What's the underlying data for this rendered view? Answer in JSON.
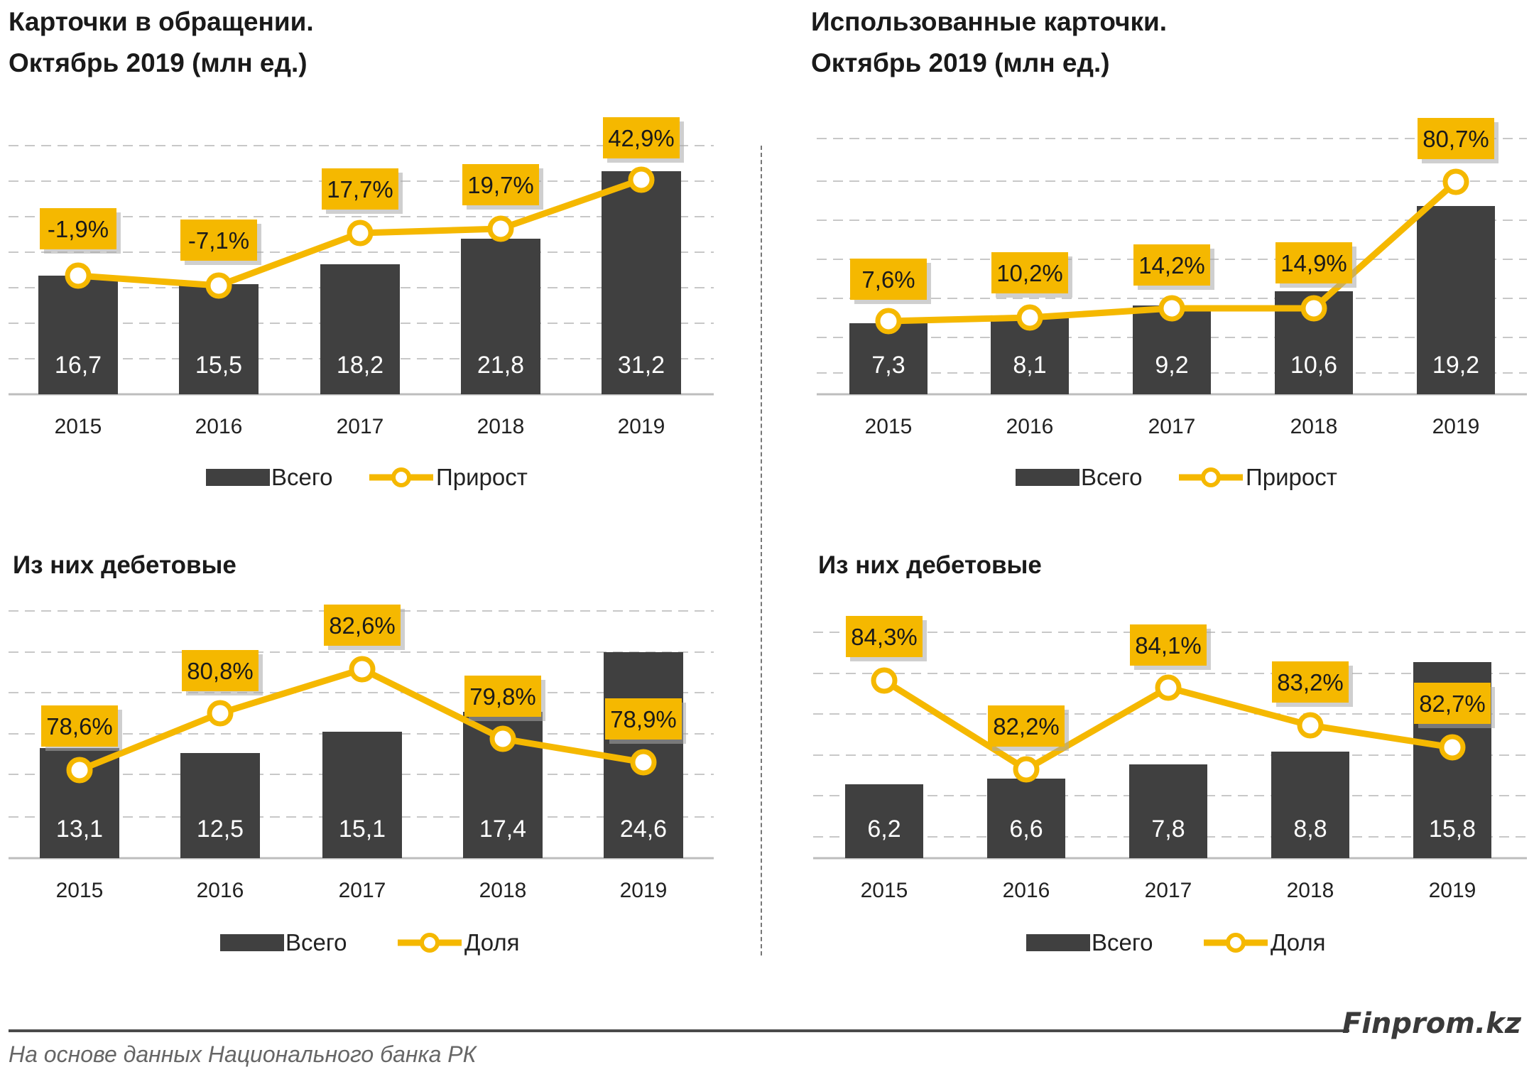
{
  "charts_text": {
    "title1_line1": "Карточки в обращении.",
    "title1_line2": "Октябрь 2019  (млн ед.)",
    "title2_line1": "Использованные карточки.",
    "title2_line2": "Октябрь 2019  (млн ед.)",
    "subtitle3": "Из них дебетовые",
    "subtitle4": "Из них дебетовые"
  },
  "footer": {
    "brand": "Finprom.kz",
    "source": "На основе данных  Национального  банка РК"
  },
  "colors": {
    "bar": "#404040",
    "line": "#f5b800",
    "label_bg": "#f5b800",
    "grid": "#c8c8c8"
  },
  "chart_data": [
    {
      "type": "bar+line",
      "title": "Карточки в обращении. Октябрь 2019 (млн ед.)",
      "categories": [
        "2015",
        "2016",
        "2017",
        "2018",
        "2019"
      ],
      "series": [
        {
          "name": "Всего",
          "type": "bar",
          "values": [
            16.7,
            15.5,
            18.2,
            21.8,
            31.2
          ],
          "labels": [
            "16,7",
            "15,5",
            "18,2",
            "21,8",
            "31,2"
          ]
        },
        {
          "name": "Прирост",
          "type": "line",
          "values": [
            -1.9,
            -7.1,
            17.7,
            19.7,
            42.9
          ],
          "labels": [
            "-1,9%",
            "-7,1%",
            "17,7%",
            "19,7%",
            "42,9%"
          ]
        }
      ],
      "grid": true,
      "legend": "bottom"
    },
    {
      "type": "bar+line",
      "title": "Использованные карточки. Октябрь 2019 (млн ед.)",
      "categories": [
        "2015",
        "2016",
        "2017",
        "2018",
        "2019"
      ],
      "series": [
        {
          "name": "Всего",
          "type": "bar",
          "values": [
            7.3,
            8.1,
            9.2,
            10.6,
            19.2
          ],
          "labels": [
            "7,3",
            "8,1",
            "9,2",
            "10,6",
            "19,2"
          ]
        },
        {
          "name": "Прирост",
          "type": "line",
          "values": [
            7.6,
            10.2,
            14.2,
            14.9,
            80.7
          ],
          "labels": [
            "7,6%",
            "10,2%",
            "14,2%",
            "14,9%",
            "80,7%"
          ]
        }
      ],
      "grid": true,
      "legend": "bottom"
    },
    {
      "type": "bar+line",
      "title": "Из них дебетовые",
      "categories": [
        "2015",
        "2016",
        "2017",
        "2018",
        "2019"
      ],
      "series": [
        {
          "name": "Всего",
          "type": "bar",
          "values": [
            13.1,
            12.5,
            15.1,
            17.4,
            24.6
          ],
          "labels": [
            "13,1",
            "12,5",
            "15,1",
            "17,4",
            "24,6"
          ]
        },
        {
          "name": "Доля",
          "type": "line",
          "values": [
            78.6,
            80.8,
            82.6,
            79.8,
            78.9
          ],
          "labels": [
            "78,6%",
            "80,8%",
            "82,6%",
            "79,8%",
            "78,9%"
          ]
        }
      ],
      "grid": true,
      "legend": "bottom"
    },
    {
      "type": "bar+line",
      "title": "Из них дебетовые",
      "categories": [
        "2015",
        "2016",
        "2017",
        "2018",
        "2019"
      ],
      "series": [
        {
          "name": "Всего",
          "type": "bar",
          "values": [
            6.2,
            6.6,
            7.8,
            8.8,
            15.8
          ],
          "labels": [
            "6,2",
            "6,6",
            "7,8",
            "8,8",
            "15,8"
          ]
        },
        {
          "name": "Доля",
          "type": "line",
          "values": [
            84.3,
            82.2,
            84.1,
            83.2,
            82.7
          ],
          "labels": [
            "84,3%",
            "82,2%",
            "84,1%",
            "83,2%",
            "82,7%"
          ]
        }
      ],
      "grid": true,
      "legend": "bottom"
    }
  ]
}
